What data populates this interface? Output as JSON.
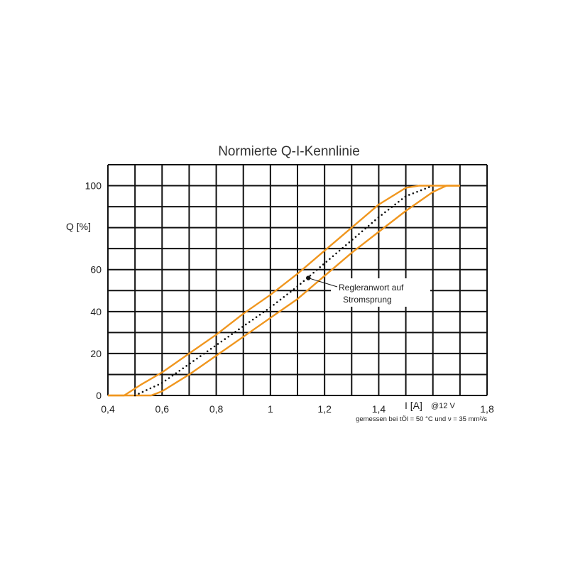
{
  "chart_data": {
    "type": "line",
    "title": "Normierte Q-I-Kennlinie",
    "ylabel": "Q [%]",
    "xlabel": "I [A]",
    "xlabel_suffix": "@12 V",
    "footnote": "gemessen bei tÖl = 50 °C und ν = 35 mm²/s",
    "annotation": [
      "Regleranwort auf",
      "Stromsprung"
    ],
    "xlim": [
      0.4,
      1.8
    ],
    "ylim": [
      0,
      110
    ],
    "x_ticks": [
      0.4,
      0.6,
      0.8,
      1.0,
      1.2,
      1.4,
      1.6,
      1.8
    ],
    "x_tick_labels": [
      "0,4",
      "0,6",
      "0,8",
      "1",
      "1,2",
      "1,4",
      "",
      "1,8"
    ],
    "y_ticks": [
      0,
      20,
      40,
      60,
      80,
      100
    ],
    "y_tick_labels": [
      "0",
      "20",
      "40",
      "60",
      "",
      "100"
    ],
    "grid": true,
    "annotation_point": {
      "x": 1.14,
      "y": 56
    },
    "colors": {
      "band": "#F0961E",
      "center": "#111111",
      "grid": "#111111"
    },
    "series": [
      {
        "style": "solid",
        "x": [
          0.4,
          0.46,
          0.52,
          0.6,
          0.7,
          0.8,
          0.9,
          1.0,
          1.1,
          1.2,
          1.3,
          1.4,
          1.5,
          1.55,
          1.6,
          1.7
        ],
        "y": [
          0,
          0,
          5,
          11,
          20,
          29,
          39,
          48,
          58,
          69,
          80,
          91,
          99,
          100,
          100,
          100
        ]
      },
      {
        "style": "solid",
        "x": [
          0.4,
          0.51,
          0.56,
          0.6,
          0.7,
          0.8,
          0.9,
          1.0,
          1.1,
          1.2,
          1.3,
          1.4,
          1.5,
          1.6,
          1.65,
          1.7
        ],
        "y": [
          0,
          0,
          0,
          2,
          10,
          19,
          28,
          37,
          46,
          57,
          68,
          78,
          88,
          97,
          100,
          100
        ]
      },
      {
        "style": "dotted",
        "x": [
          0.5,
          0.6,
          0.7,
          0.8,
          0.9,
          1.0,
          1.1,
          1.2,
          1.3,
          1.4,
          1.5,
          1.6
        ],
        "y": [
          0,
          6,
          15,
          24,
          33,
          42,
          52,
          63,
          74,
          85,
          95,
          100
        ]
      }
    ]
  }
}
